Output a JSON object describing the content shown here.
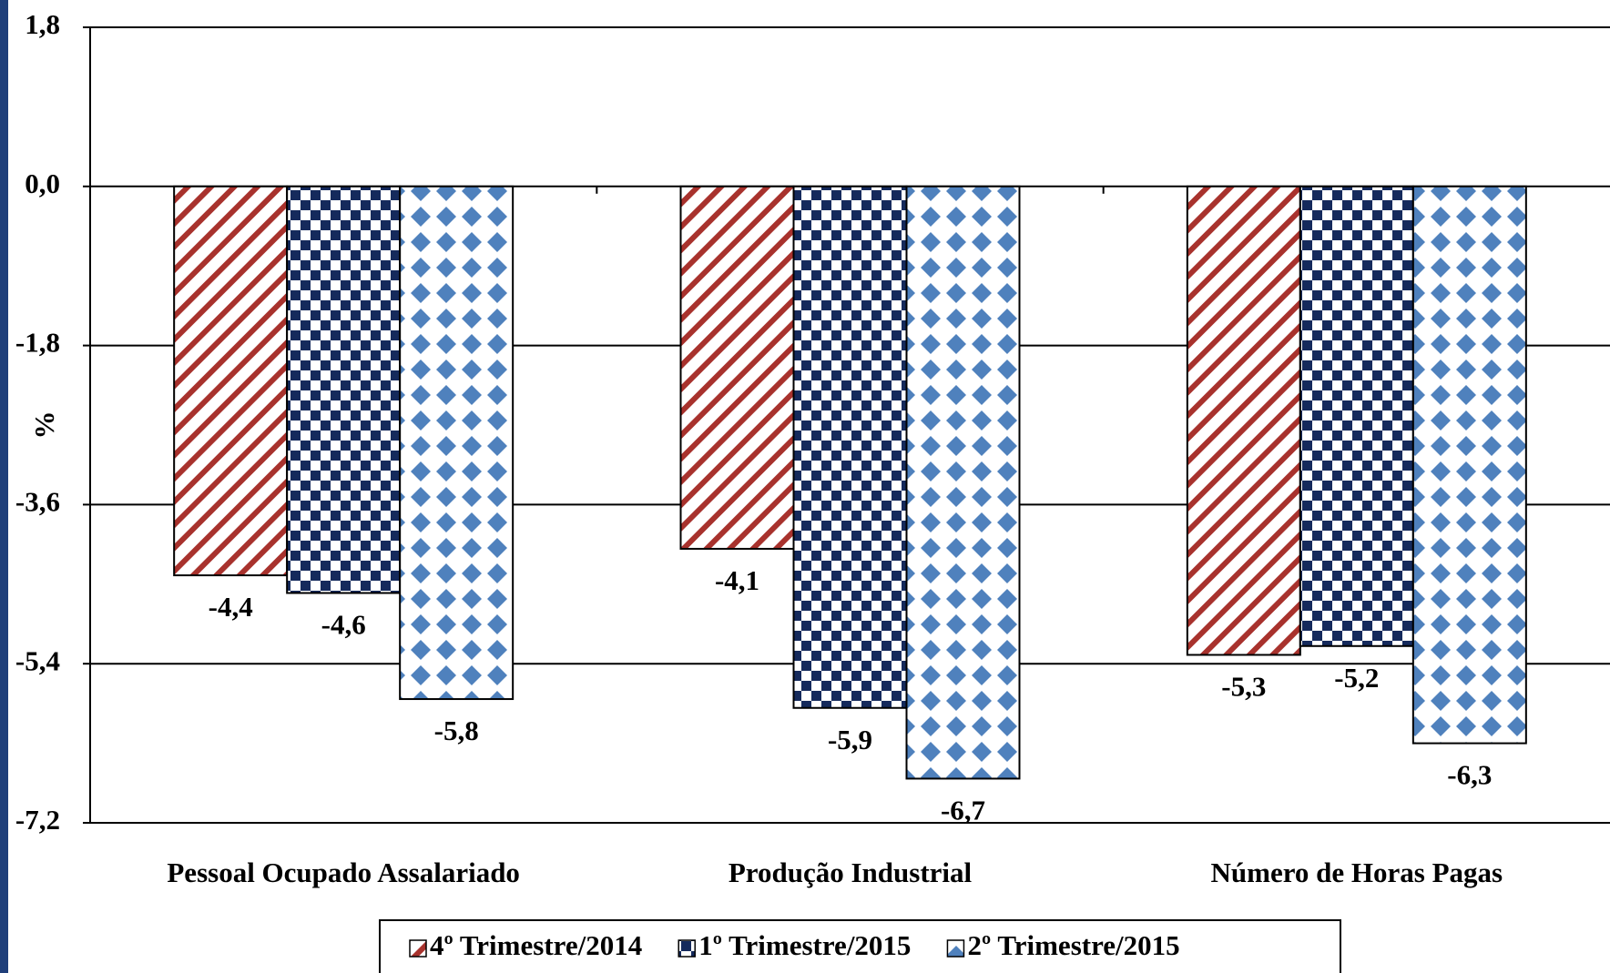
{
  "chart_data": {
    "type": "bar",
    "categories": [
      "Pessoal Ocupado Assalariado",
      "Produção Industrial",
      "Número de Horas Pagas"
    ],
    "series": [
      {
        "name": "4º Trimestre/2014",
        "color": "#a8322d",
        "pattern": "diagonal",
        "values": [
          -4.4,
          -4.1,
          -5.3
        ],
        "value_labels": [
          "-4,4",
          "-4,1",
          "-5,3"
        ]
      },
      {
        "name": "1º Trimestre/2015",
        "color": "#152a5c",
        "pattern": "checker",
        "values": [
          -4.6,
          -5.9,
          -5.2
        ],
        "value_labels": [
          "-4,6",
          "-5,9",
          "-5,2"
        ]
      },
      {
        "name": "2º Trimestre/2015",
        "color": "#4f81bd",
        "pattern": "diamond",
        "values": [
          -5.8,
          -6.7,
          -6.3
        ],
        "value_labels": [
          "-5,8",
          "-6,7",
          "-6,3"
        ]
      }
    ],
    "y_label": "%",
    "ylim": [
      -7.2,
      1.8
    ],
    "yticks": [
      {
        "value": -7.2,
        "label": "-7,2"
      },
      {
        "value": -5.4,
        "label": "-5,4"
      },
      {
        "value": -3.6,
        "label": "-3,6"
      },
      {
        "value": -1.8,
        "label": "-1,8"
      },
      {
        "value": 0,
        "label": "0,0"
      },
      {
        "value": 1.8,
        "label": "1,8"
      }
    ],
    "grid": true,
    "legend": "bottom"
  }
}
